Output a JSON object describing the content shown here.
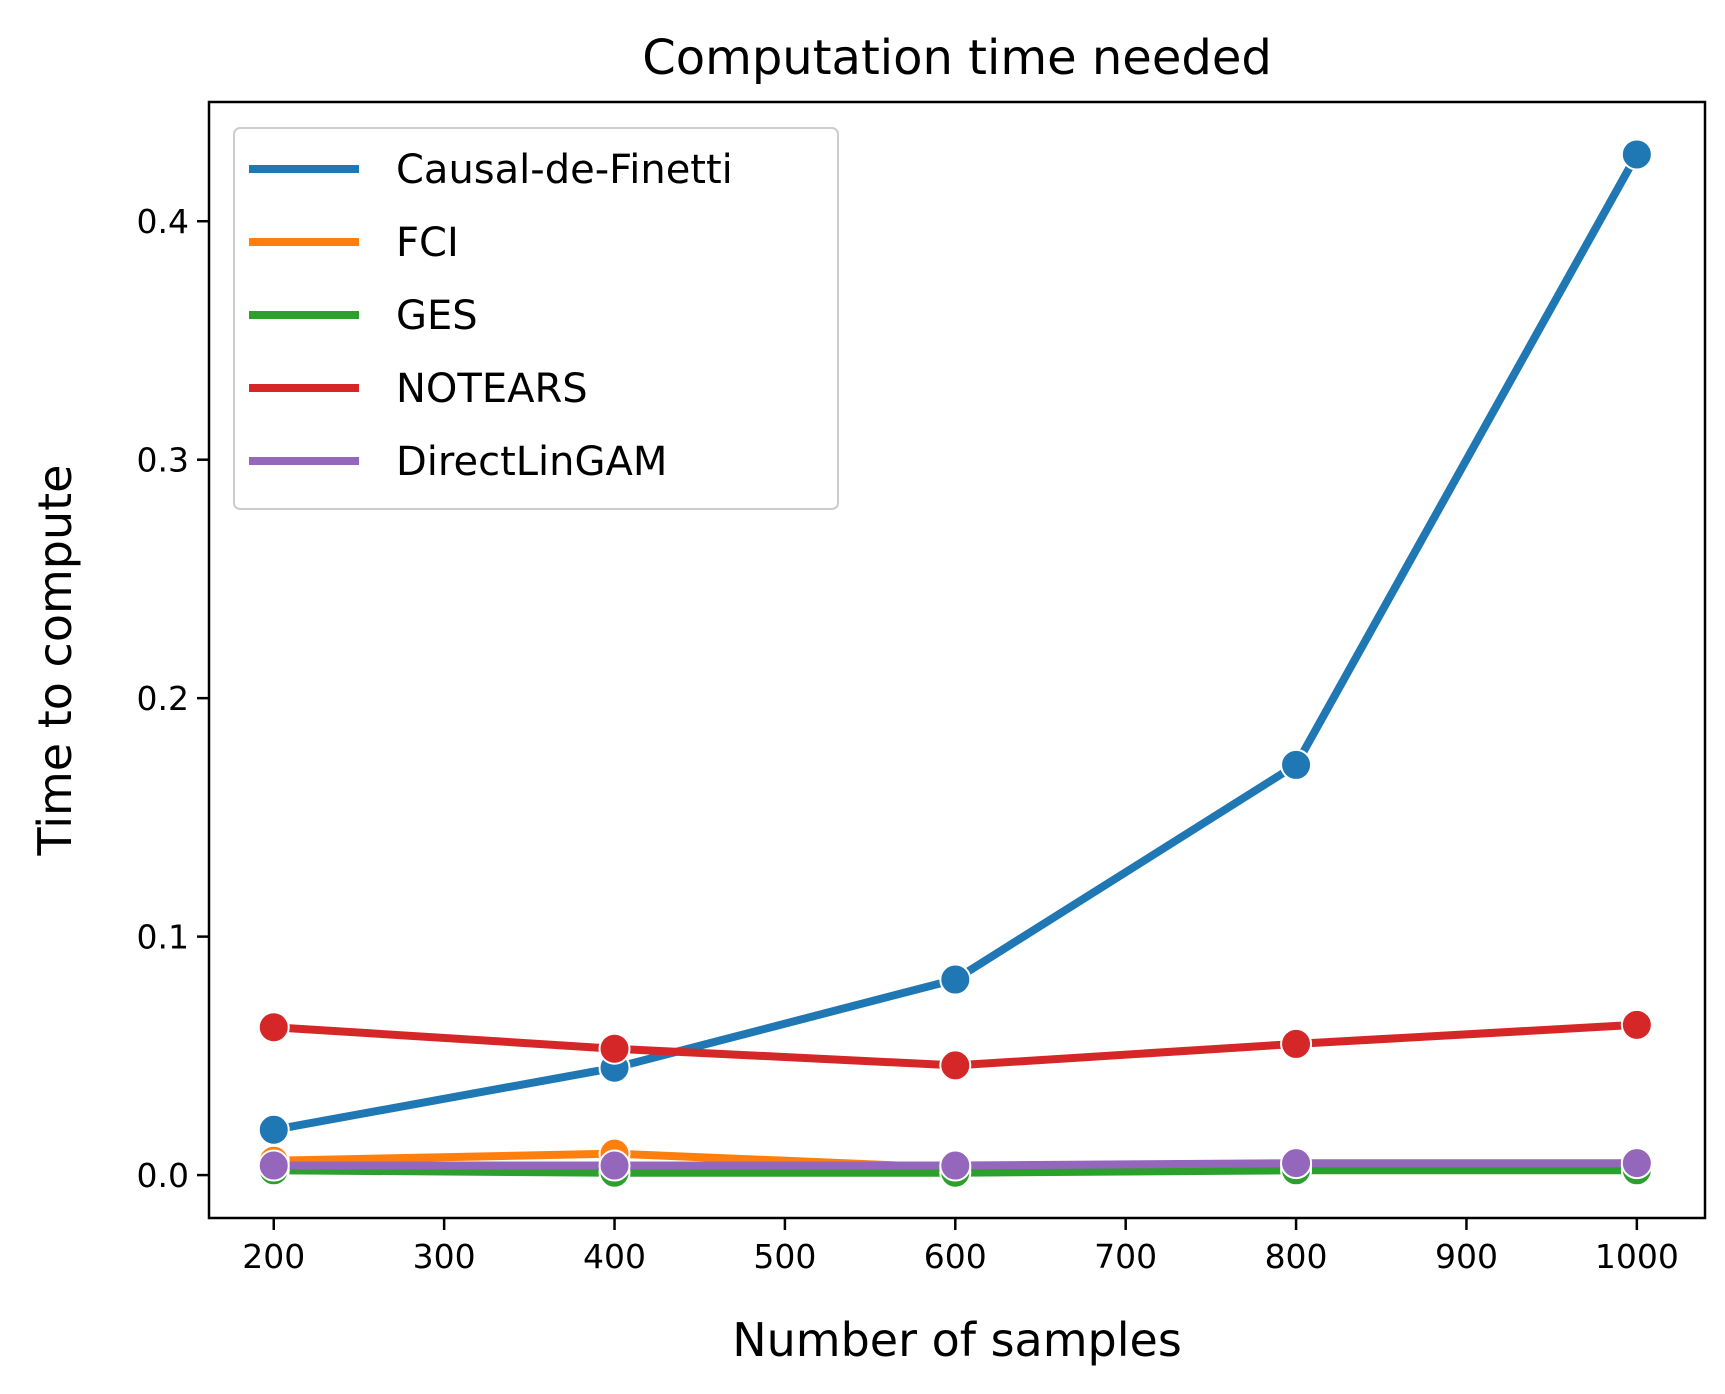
{
  "chart_data": {
    "type": "line",
    "title": "Computation time needed",
    "xlabel": "Number of samples",
    "ylabel": "Time to compute",
    "x": [
      200,
      400,
      600,
      800,
      1000
    ],
    "xlim": [
      162,
      1040
    ],
    "ylim": [
      -0.018,
      0.45
    ],
    "xticks": [
      200,
      300,
      400,
      500,
      600,
      700,
      800,
      900,
      1000
    ],
    "xtick_labels": [
      "200",
      "300",
      "400",
      "500",
      "600",
      "700",
      "800",
      "900",
      "1000"
    ],
    "yticks": [
      0.0,
      0.1,
      0.2,
      0.3,
      0.4
    ],
    "ytick_labels": [
      "0.0",
      "0.1",
      "0.2",
      "0.3",
      "0.4"
    ],
    "grid": false,
    "legend_position": "top-left",
    "series": [
      {
        "name": "Causal-de-Finetti",
        "color": "#1f77b4",
        "values": [
          0.019,
          0.045,
          0.082,
          0.172,
          0.428
        ]
      },
      {
        "name": "FCI",
        "color": "#ff7f0e",
        "values": [
          0.006,
          0.009,
          0.003,
          0.004,
          0.004
        ]
      },
      {
        "name": "GES",
        "color": "#2ca02c",
        "values": [
          0.002,
          0.001,
          0.001,
          0.002,
          0.002
        ]
      },
      {
        "name": "NOTEARS",
        "color": "#d62728",
        "values": [
          0.062,
          0.053,
          0.046,
          0.055,
          0.063
        ]
      },
      {
        "name": "DirectLinGAM",
        "color": "#9467bd",
        "values": [
          0.004,
          0.004,
          0.004,
          0.005,
          0.005
        ]
      }
    ]
  }
}
